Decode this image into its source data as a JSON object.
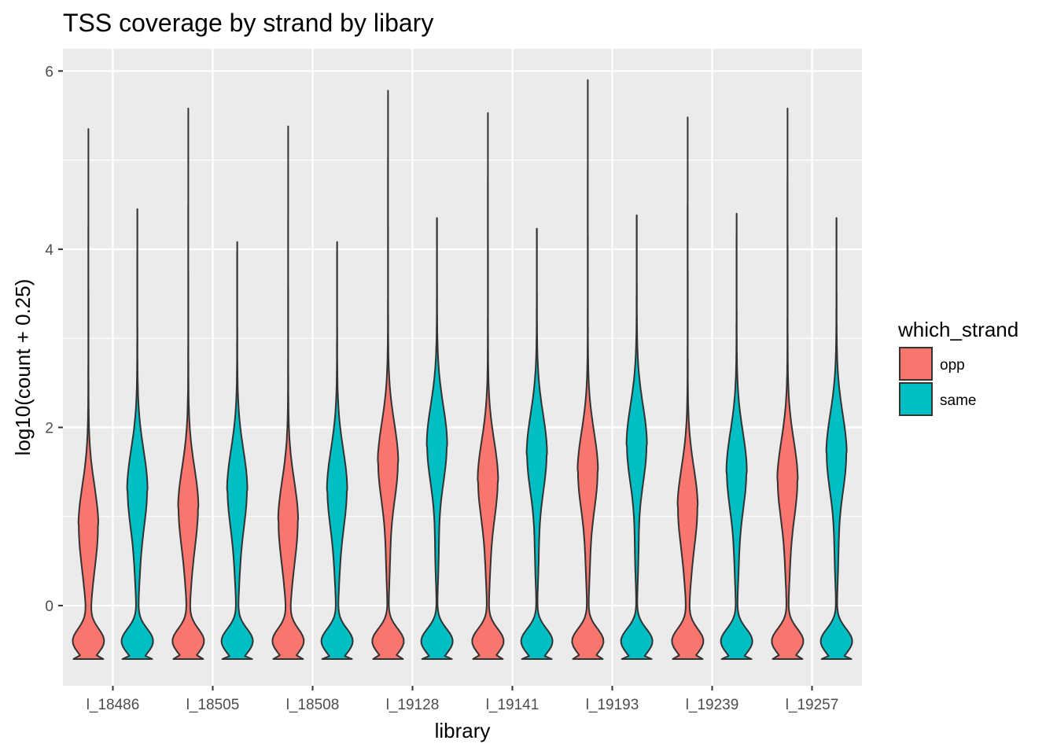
{
  "chart_data": {
    "type": "violin",
    "title": "TSS coverage by strand by libary",
    "xlabel": "library",
    "ylabel": "log10(count + 0.25)",
    "ylim": [
      -0.9,
      6.25
    ],
    "yticks": [
      0,
      2,
      4,
      6
    ],
    "grid": true,
    "legend": {
      "title": "which_strand",
      "position": "right",
      "entries": [
        {
          "label": "opp",
          "color": "#F8766D"
        },
        {
          "label": "same",
          "color": "#00BFC4"
        }
      ]
    },
    "categories": [
      "l_18486",
      "l_18505",
      "l_18508",
      "l_19128",
      "l_19141",
      "l_19193",
      "l_19239",
      "l_19257"
    ],
    "series": [
      {
        "name": "opp",
        "color": "#F8766D",
        "min": [
          -0.6,
          -0.6,
          -0.6,
          -0.6,
          -0.6,
          -0.6,
          -0.6,
          -0.6
        ],
        "max": [
          5.35,
          5.58,
          5.38,
          5.78,
          5.53,
          5.9,
          5.48,
          5.58
        ],
        "mode": [
          0.9,
          1.1,
          0.95,
          1.6,
          1.4,
          1.5,
          1.1,
          1.4
        ]
      },
      {
        "name": "same",
        "color": "#00BFC4",
        "min": [
          -0.6,
          -0.6,
          -0.6,
          -0.6,
          -0.6,
          -0.6,
          -0.6,
          -0.6
        ],
        "max": [
          4.45,
          4.08,
          4.08,
          4.35,
          4.23,
          4.38,
          4.4,
          4.35
        ],
        "mode": [
          1.3,
          1.3,
          1.3,
          1.8,
          1.7,
          1.8,
          1.5,
          1.7
        ]
      }
    ]
  }
}
